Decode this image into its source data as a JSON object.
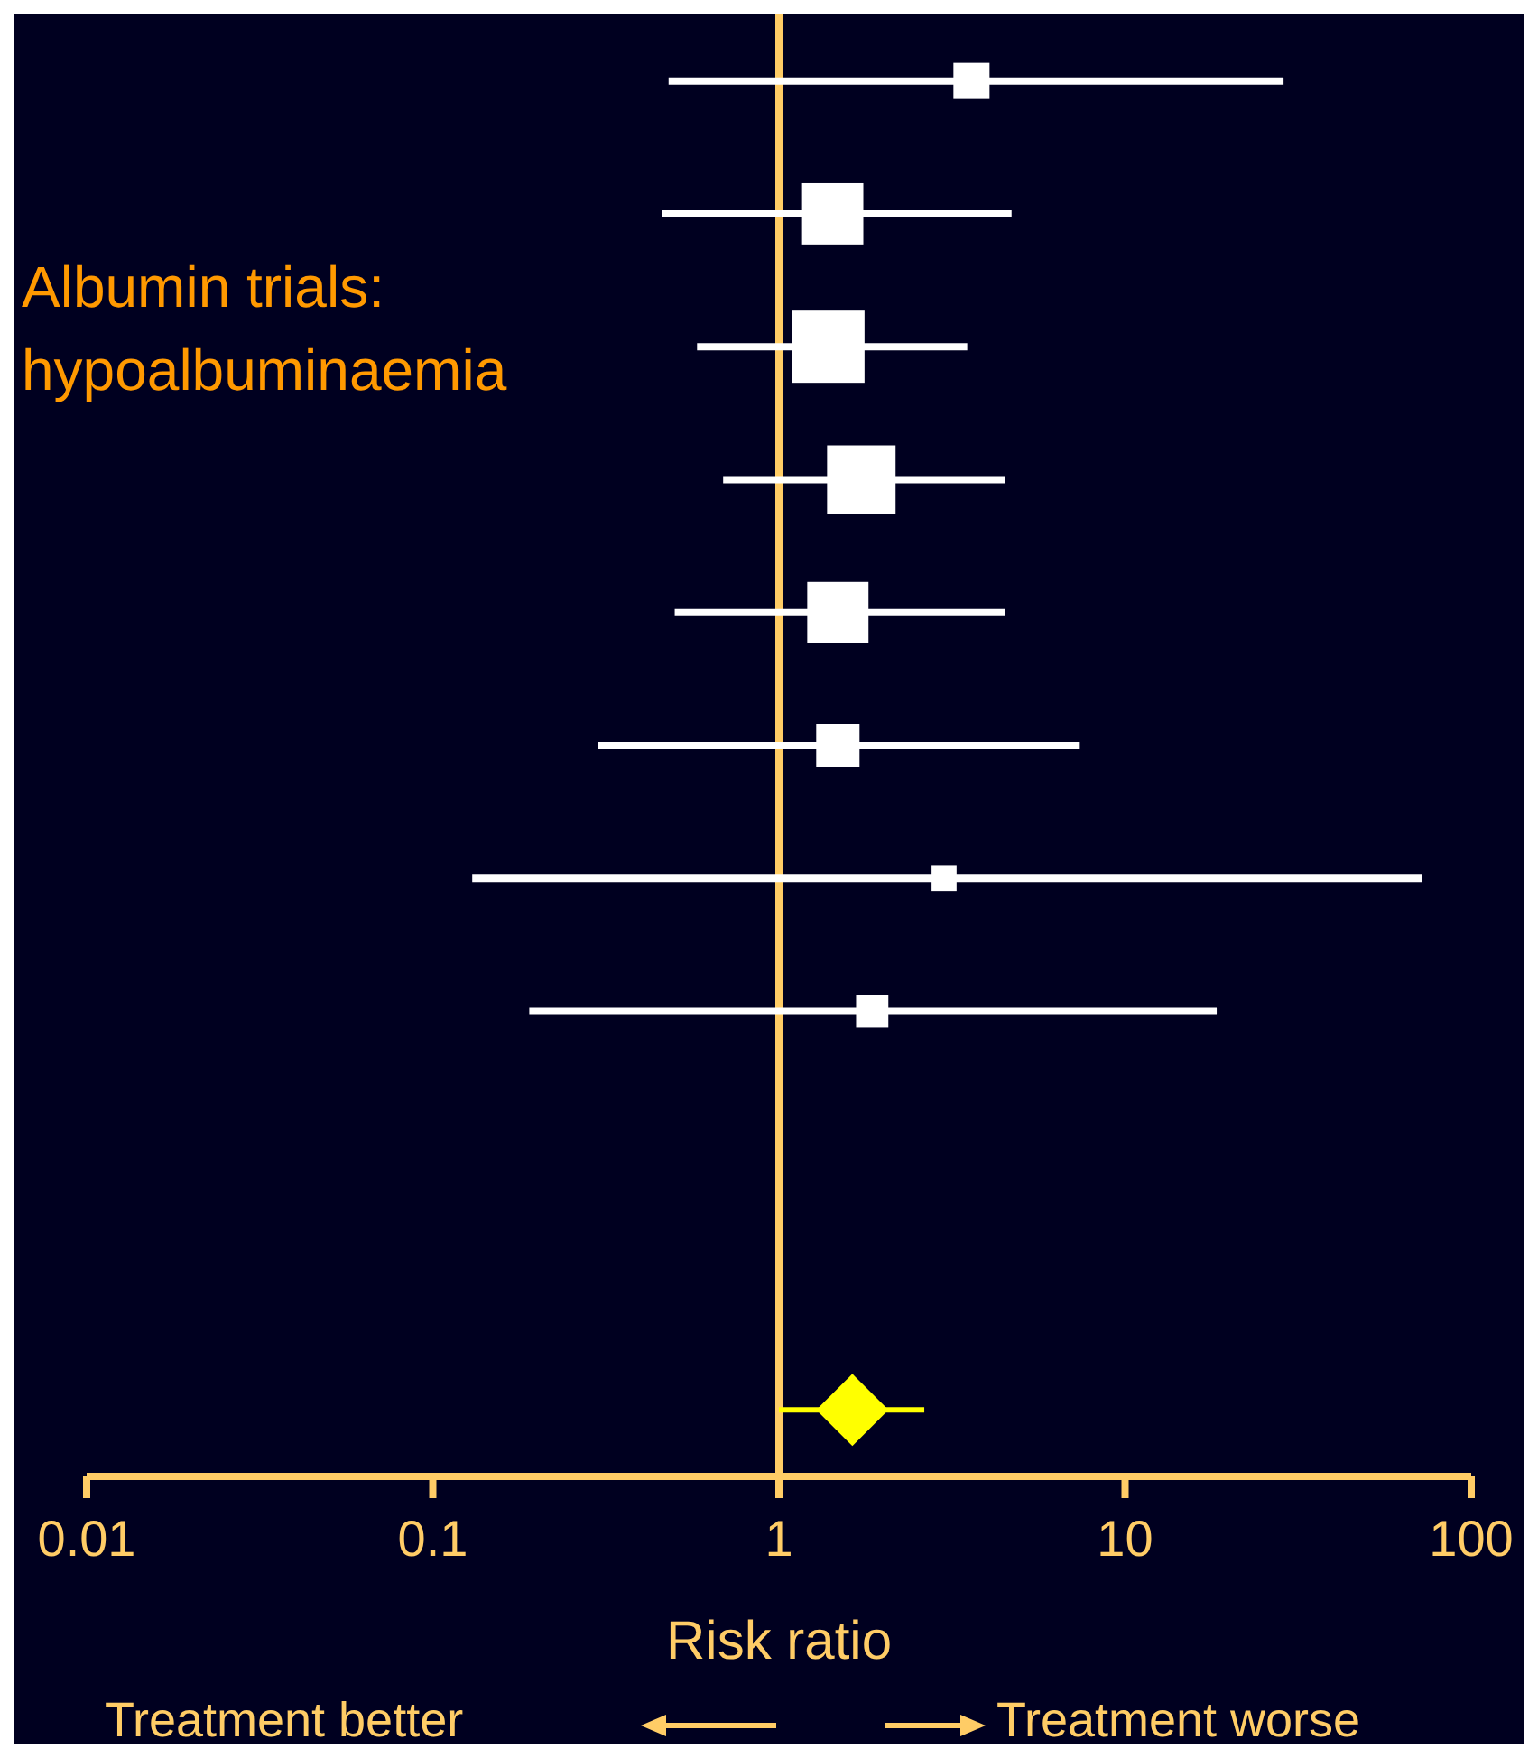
{
  "chart_data": {
    "type": "bubble",
    "orientation": "horizontal",
    "log": "x",
    "marker": "square",
    "categories": [
      null,
      null,
      null,
      null,
      null,
      null,
      null,
      null,
      null,
      null,
      null
    ],
    "xlim": [
      0.01,
      100
    ],
    "xticks": [
      0.01,
      0.1,
      1,
      10,
      100
    ],
    "xlabel": "Risk ratio",
    "series": [
      {
        "color": "#ffffff",
        "values": [
          3.6,
          1.43,
          1.39,
          1.73,
          1.48,
          1.48,
          3.0,
          1.86,
          null,
          null,
          null
        ],
        "errors": [
          [
            0.48,
            28.7
          ],
          [
            0.46,
            4.7
          ],
          [
            0.58,
            3.5
          ],
          [
            0.69,
            4.5
          ],
          [
            0.5,
            4.5
          ],
          [
            0.3,
            7.4
          ],
          [
            0.13,
            72
          ],
          [
            0.19,
            18.4
          ],
          null,
          null,
          null
        ],
        "sizes": [
          0.25,
          0.72,
          1,
          0.9,
          0.72,
          0.36,
          0.12,
          0.2,
          null,
          null,
          null
        ]
      },
      {
        "type": "scatter",
        "marker": "diamond",
        "color": "#ffff00",
        "values": [
          null,
          null,
          null,
          null,
          null,
          null,
          null,
          null,
          null,
          null,
          1.63
        ],
        "errors": [
          null,
          null,
          null,
          null,
          null,
          null,
          null,
          null,
          null,
          null,
          [
            1.0,
            2.63
          ]
        ]
      }
    ],
    "ref_lines": [
      {
        "axis": "x",
        "value": 1,
        "color": "#ffcc66"
      }
    ],
    "annotations": [
      "Albumin trials: hypoalbuminaemia",
      "Treatment better",
      "Treatment worse"
    ]
  }
}
